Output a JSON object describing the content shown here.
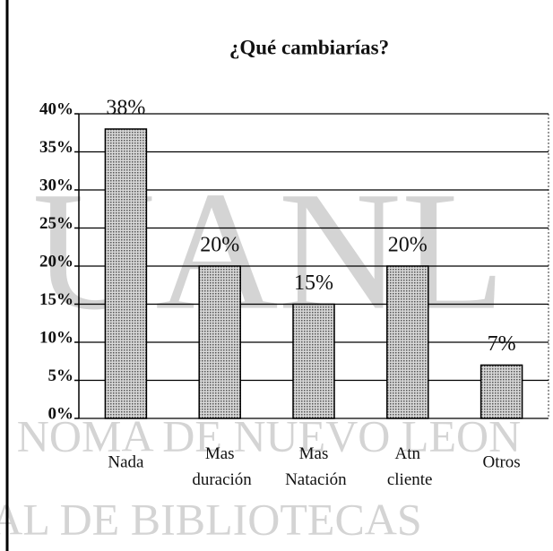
{
  "chart_data": {
    "type": "bar",
    "title": "¿Qué cambiarías?",
    "categories": [
      "Nada",
      "Mas duración",
      "Mas Natación",
      "Atn cliente",
      "Otros"
    ],
    "values": [
      38,
      20,
      15,
      20,
      7
    ],
    "value_labels": [
      "38%",
      "20%",
      "15%",
      "20%",
      "7%"
    ],
    "color": "#b8b8b8",
    "ylim": [
      0,
      40
    ],
    "yticks": [
      {
        "value": 0,
        "label": "0%"
      },
      {
        "value": 5,
        "label": "5%"
      },
      {
        "value": 10,
        "label": "10%"
      },
      {
        "value": 15,
        "label": "15%"
      },
      {
        "value": 20,
        "label": "20%"
      },
      {
        "value": 25,
        "label": "25%"
      },
      {
        "value": 30,
        "label": "30%"
      },
      {
        "value": 35,
        "label": "35%"
      },
      {
        "value": 40,
        "label": "40%"
      }
    ],
    "grid": true
  },
  "watermark": [
    "UANL",
    "NOMA DE NUEVO LEON",
    "AL DE BIBLIOTECAS"
  ]
}
